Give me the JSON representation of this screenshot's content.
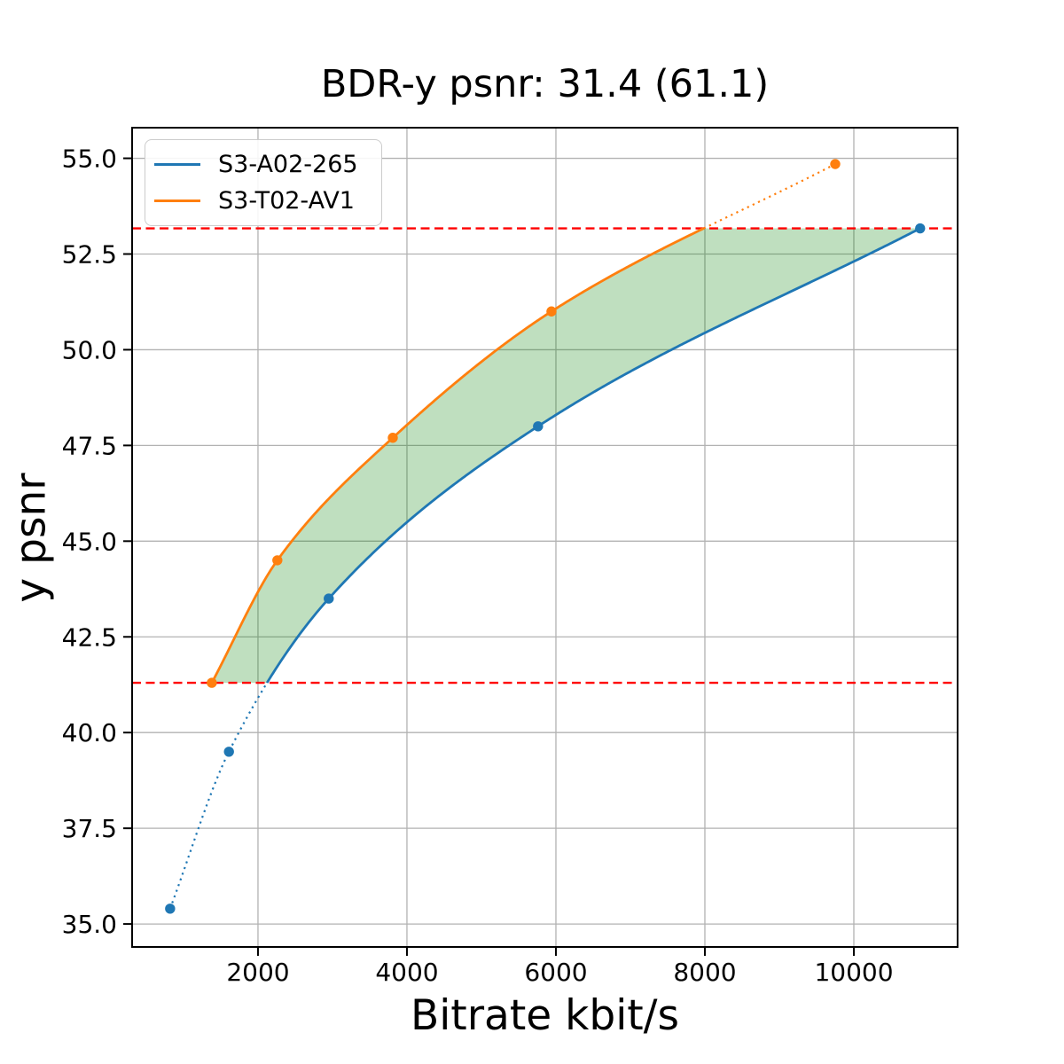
{
  "chart_data": {
    "type": "line",
    "title": "BDR-y psnr: 31.4 (61.1)",
    "xlabel": "Bitrate kbit/s",
    "ylabel": "y psnr",
    "xlim": [
      310,
      11393
    ],
    "ylim": [
      34.4,
      55.8
    ],
    "xticks": [
      2000,
      4000,
      6000,
      8000,
      10000
    ],
    "yticks": [
      35.0,
      37.5,
      40.0,
      42.5,
      45.0,
      47.5,
      50.0,
      52.5,
      55.0
    ],
    "grid": true,
    "grid_color": "#b2b2b2",
    "legend_position": "upper left",
    "series": [
      {
        "name": "S3-A02-265",
        "color": "#1f77b4",
        "points": [
          [
            820,
            35.4
          ],
          [
            1610,
            39.5
          ],
          [
            2950,
            43.5
          ],
          [
            5760,
            48.0
          ],
          [
            10890,
            53.17
          ]
        ],
        "dotted_end": "low"
      },
      {
        "name": "S3-T02-AV1",
        "color": "#ff7f0e",
        "points": [
          [
            1380,
            41.3
          ],
          [
            2260,
            44.5
          ],
          [
            3810,
            47.7
          ],
          [
            5940,
            51.0
          ],
          [
            9750,
            54.85
          ]
        ],
        "dotted_end": "high"
      }
    ],
    "bd_lines": {
      "color": "#ff0000",
      "upper": 53.17,
      "lower": 41.3
    },
    "fill": {
      "color": "#008000",
      "opacity": 0.25
    }
  }
}
